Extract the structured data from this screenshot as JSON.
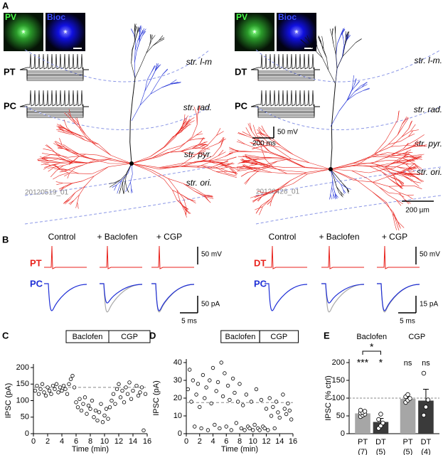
{
  "panel_a": {
    "label": "A",
    "left": {
      "pv": "PV",
      "bioc": "Bioc",
      "marker": "*",
      "trace_top": "PT",
      "trace_bottom": "PC",
      "layers": [
        "str. l-m",
        "str. rad.",
        "str. pyr.",
        "str. ori."
      ],
      "cell_id": "20120519_01"
    },
    "right": {
      "pv": "PV",
      "bioc": "Bioc",
      "marker": "*",
      "trace_top": "DT",
      "trace_bottom": "PC",
      "layers": [
        "str. l-m.",
        "str. rad.",
        "str. pyr.",
        "str. ori."
      ],
      "cell_id": "20120426_01",
      "scale_v": "50 mV",
      "scale_t": "200 ms",
      "scale_bar": "200 µm"
    }
  },
  "panel_b": {
    "label": "B",
    "left": {
      "conditions": [
        "Control",
        "+ Baclofen",
        "+ CGP"
      ],
      "top": "PT",
      "bottom": "PC",
      "scale_v": "50 mV",
      "scale_i": "50 pA",
      "scale_t": "5 ms"
    },
    "right": {
      "conditions": [
        "Control",
        "+ Baclofen",
        "+ CGP"
      ],
      "top": "DT",
      "bottom": "PC",
      "scale_v": "50 mV",
      "scale_i": "15 pA",
      "scale_t": "5 ms"
    }
  },
  "chart_data": [
    {
      "type": "scatter",
      "panel_label": "C",
      "xlabel": "Time (min)",
      "ylabel": "IPSC (pA)",
      "xlim": [
        0,
        16
      ],
      "xticks": [
        0,
        2,
        4,
        6,
        8,
        10,
        12,
        14,
        16
      ],
      "ylim": [
        0,
        200
      ],
      "yticks": [
        0,
        50,
        100,
        150,
        200
      ],
      "reference_line": 140,
      "periods": [
        {
          "label": "Baclofen",
          "start": 4.6,
          "end": 10.6
        },
        {
          "label": "CGP",
          "start": 10.6,
          "end": 16.4
        }
      ],
      "x": [
        0.25,
        0.5,
        0.75,
        1,
        1.25,
        1.5,
        1.75,
        2,
        2.25,
        2.5,
        2.75,
        3,
        3.25,
        3.5,
        3.75,
        4,
        4.25,
        4.5,
        4.75,
        5,
        5.25,
        5.5,
        5.75,
        6,
        6.25,
        6.5,
        6.75,
        7,
        7.25,
        7.5,
        7.75,
        8,
        8.25,
        8.5,
        8.75,
        9,
        9.25,
        9.5,
        9.75,
        10,
        10.25,
        10.5,
        10.75,
        11,
        11.25,
        11.5,
        11.75,
        12,
        12.25,
        12.5,
        12.75,
        13,
        13.25,
        13.5,
        13.75,
        14,
        14.5,
        14.75,
        15,
        15.25,
        15.5,
        15.75
      ],
      "values": [
        130,
        145,
        120,
        135,
        150,
        125,
        115,
        140,
        130,
        120,
        145,
        135,
        150,
        125,
        140,
        130,
        145,
        135,
        120,
        150,
        165,
        175,
        140,
        95,
        80,
        105,
        70,
        90,
        110,
        60,
        85,
        75,
        100,
        50,
        70,
        40,
        65,
        90,
        35,
        55,
        75,
        45,
        80,
        100,
        120,
        90,
        135,
        150,
        110,
        130,
        95,
        140,
        120,
        155,
        105,
        130,
        145,
        115,
        125,
        140,
        10,
        120
      ]
    },
    {
      "type": "scatter",
      "panel_label": "D",
      "xlabel": "Time (min)",
      "ylabel": "IPSC (pA)",
      "xlim": [
        0,
        16
      ],
      "xticks": [
        0,
        2,
        4,
        6,
        8,
        10,
        12,
        14,
        16
      ],
      "ylim": [
        0,
        40
      ],
      "yticks": [
        0,
        10,
        20,
        30,
        40
      ],
      "reference_line": 17.5,
      "periods": [
        {
          "label": "Baclofen",
          "start": 5.2,
          "end": 11
        },
        {
          "label": "CGP",
          "start": 11,
          "end": 16.8
        }
      ],
      "x": [
        0.25,
        0.5,
        0.75,
        1,
        1.25,
        1.5,
        1.75,
        2,
        2.25,
        2.5,
        2.75,
        3,
        3.25,
        3.5,
        3.75,
        4,
        4.25,
        4.5,
        4.75,
        5,
        5.25,
        5.5,
        5.75,
        6,
        6.25,
        6.5,
        6.75,
        7,
        7.25,
        7.5,
        7.75,
        8,
        8.25,
        8.5,
        8.75,
        9,
        9.25,
        9.5,
        9.75,
        10,
        10.25,
        10.5,
        10.75,
        11,
        11.25,
        11.5,
        11.75,
        12,
        12.25,
        12.5,
        12.75,
        13,
        13.25,
        13.5,
        13.75,
        14,
        14.5,
        14.75,
        15,
        15.25,
        15.5,
        15.75
      ],
      "values": [
        25,
        36,
        18,
        30,
        4,
        22,
        28,
        15,
        3,
        33,
        20,
        26,
        2,
        30,
        17,
        37,
        5,
        24,
        29,
        3,
        40,
        21,
        34,
        4,
        27,
        19,
        2,
        31,
        23,
        6,
        18,
        28,
        3,
        16,
        2,
        22,
        4,
        3,
        18,
        2,
        5,
        25,
        3,
        2,
        19,
        4,
        3,
        14,
        2,
        20,
        10,
        15,
        3,
        18,
        12,
        9,
        22,
        14,
        11,
        17,
        13,
        8
      ]
    },
    {
      "type": "bar",
      "panel_label": "E",
      "ylabel": "IPSC (% ctrl)",
      "ylim": [
        0,
        200
      ],
      "yticks": [
        0,
        50,
        100,
        150,
        200
      ],
      "reference_line": 100,
      "groups": [
        "Baclofen",
        "CGP"
      ],
      "categories": [
        "PT",
        "DT",
        "PT",
        "DT"
      ],
      "n_labels": [
        "(7)",
        "(5)",
        "(5)",
        "(4)"
      ],
      "colors": [
        "#a6a6a6",
        "#3a3a3a",
        "#a6a6a6",
        "#3a3a3a"
      ],
      "values": [
        57,
        33,
        98,
        93
      ],
      "errors": [
        5,
        10,
        6,
        32
      ],
      "points": [
        [
          48,
          52,
          55,
          58,
          60,
          63,
          66
        ],
        [
          15,
          22,
          30,
          40,
          55
        ],
        [
          88,
          94,
          99,
          104,
          110
        ],
        [
          52,
          75,
          95,
          170
        ]
      ],
      "significance": [
        "***",
        "*",
        "ns",
        "ns"
      ],
      "bracket_label": "*"
    }
  ]
}
